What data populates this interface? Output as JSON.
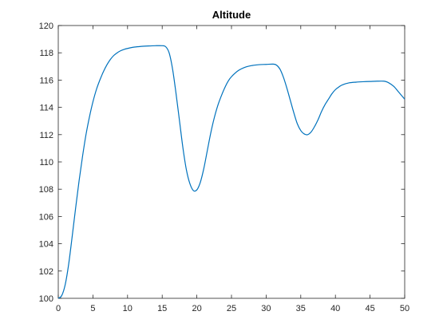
{
  "chart_data": {
    "type": "line",
    "title": "Altitude",
    "xlabel": "",
    "ylabel": "",
    "xlim": [
      0,
      50
    ],
    "ylim": [
      100,
      120
    ],
    "xticks": [
      0,
      5,
      10,
      15,
      20,
      25,
      30,
      35,
      40,
      45,
      50
    ],
    "yticks": [
      100,
      102,
      104,
      106,
      108,
      110,
      112,
      114,
      116,
      118,
      120
    ],
    "grid": false,
    "line_color": "#0072BD",
    "series": [
      {
        "x": [
          0,
          0.5,
          1,
          1.5,
          2,
          2.5,
          3,
          3.5,
          4,
          4.5,
          5,
          5.5,
          6,
          6.5,
          7,
          7.5,
          8,
          8.5,
          9,
          9.5,
          10,
          11,
          12,
          13,
          14,
          15,
          15.5,
          16,
          16.5,
          17,
          17.5,
          18,
          18.5,
          19,
          19.5,
          20,
          20.5,
          21,
          21.5,
          22,
          22.5,
          23,
          23.5,
          24,
          24.5,
          25,
          26,
          27,
          28,
          29,
          30,
          31,
          31.5,
          32,
          32.5,
          33,
          33.5,
          34,
          34.5,
          35,
          35.5,
          36,
          36.5,
          37,
          37.5,
          38,
          38.5,
          39,
          39.5,
          40,
          40.5,
          41,
          42,
          43,
          44,
          45,
          46,
          47,
          47.5,
          48,
          48.5,
          49,
          49.5,
          50
        ],
        "y": [
          100.0,
          100.2,
          101.0,
          102.5,
          104.5,
          106.6,
          108.6,
          110.4,
          112.0,
          113.3,
          114.4,
          115.3,
          116.0,
          116.6,
          117.1,
          117.5,
          117.8,
          118.0,
          118.15,
          118.25,
          118.32,
          118.42,
          118.47,
          118.5,
          118.52,
          118.52,
          118.45,
          118.0,
          116.8,
          115.0,
          113.0,
          111.0,
          109.4,
          108.4,
          107.9,
          107.95,
          108.5,
          109.5,
          110.8,
          112.1,
          113.2,
          114.1,
          114.8,
          115.4,
          115.9,
          116.25,
          116.7,
          116.95,
          117.07,
          117.13,
          117.15,
          117.17,
          117.1,
          116.8,
          116.2,
          115.4,
          114.5,
          113.6,
          112.8,
          112.3,
          112.05,
          112.0,
          112.2,
          112.6,
          113.1,
          113.7,
          114.2,
          114.6,
          115.0,
          115.3,
          115.5,
          115.65,
          115.8,
          115.85,
          115.88,
          115.9,
          115.92,
          115.92,
          115.85,
          115.7,
          115.5,
          115.2,
          114.9,
          114.6
        ]
      }
    ]
  }
}
